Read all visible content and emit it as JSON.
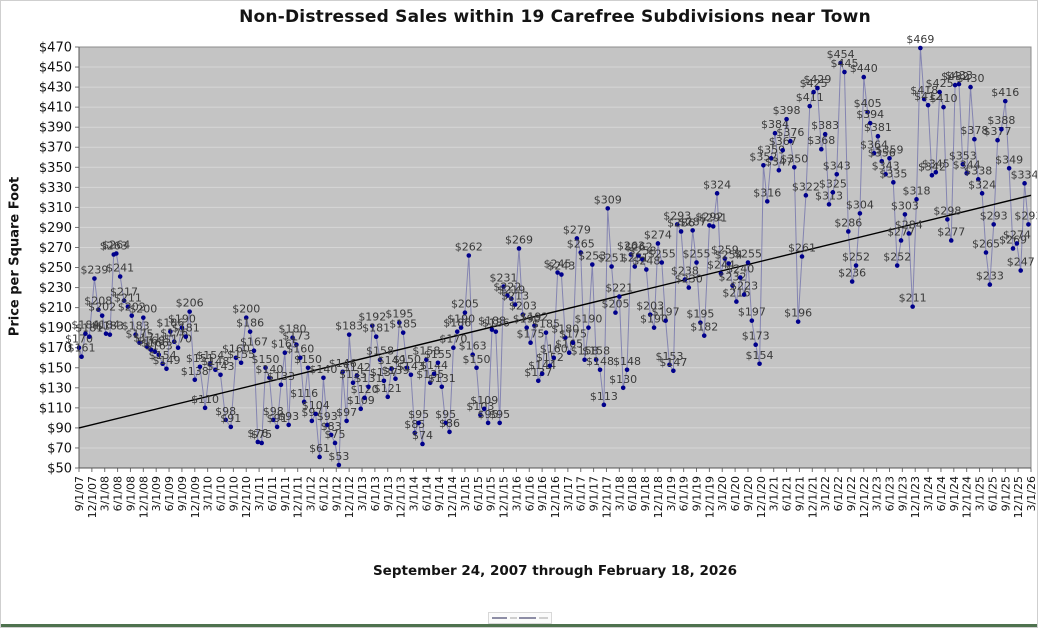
{
  "window": {
    "frame_border_color": "#cfcfcf",
    "bottom_bar_color": "#4e724e"
  },
  "chart_data": {
    "type": "scatter",
    "title": "Non-Distressed Sales within 19 Carefree Subdivisions near Town",
    "xlabel": "September 24, 2007 through February 18, 2026",
    "ylabel": "Price per Square Foot",
    "ylim": [
      50,
      470
    ],
    "ytick_step": 20,
    "grid": "horizontal",
    "legend_position": "bottom-miniature",
    "plot_bg": "#c4c4c4",
    "gridline_color": "#d6d6d6",
    "plot_border_color": "#8c8c8c",
    "axis_color": "#555555",
    "tick_color": "#707070",
    "point_color": "#00008b",
    "line_color": "rgba(90,90,165,0.6)",
    "label_color": "#3a3a3a",
    "trend_color": "#000000",
    "trendline": {
      "start_value": 90,
      "end_value": 322
    },
    "y_tick_labels": [
      "$470",
      "$450",
      "$430",
      "$410",
      "$390",
      "$370",
      "$350",
      "$330",
      "$310",
      "$290",
      "$270",
      "$250",
      "$230",
      "$210",
      "$190",
      "$170",
      "$150",
      "$130",
      "$110",
      "$90",
      "$70",
      "$50"
    ],
    "x_tick_labels": [
      "9/1/07",
      "12/1/07",
      "3/1/08",
      "6/1/08",
      "9/1/08",
      "12/1/08",
      "3/1/09",
      "6/1/09",
      "9/1/09",
      "12/1/09",
      "3/1/10",
      "6/1/10",
      "9/1/10",
      "12/1/10",
      "3/1/11",
      "6/1/11",
      "9/1/11",
      "12/1/11",
      "3/1/12",
      "6/1/12",
      "9/1/12",
      "12/1/12",
      "3/1/13",
      "6/1/13",
      "9/1/13",
      "12/1/13",
      "3/1/14",
      "6/1/14",
      "9/1/14",
      "12/1/14",
      "3/1/15",
      "6/1/15",
      "9/1/15",
      "12/1/15",
      "3/1/16",
      "6/1/16",
      "9/1/16",
      "12/1/16",
      "3/1/17",
      "6/1/17",
      "9/1/17",
      "12/1/17",
      "3/1/18",
      "6/1/18",
      "9/1/18",
      "12/1/18",
      "3/1/19",
      "6/1/19",
      "9/1/19",
      "12/1/19",
      "3/1/20",
      "6/1/20",
      "9/1/20",
      "12/1/20",
      "3/1/21",
      "6/1/21",
      "9/1/21",
      "12/1/21",
      "3/1/22",
      "6/1/22",
      "9/1/22",
      "12/1/22",
      "3/1/23",
      "6/1/23",
      "9/1/23",
      "12/1/23",
      "3/1/24",
      "6/1/24",
      "9/1/24",
      "12/1/24",
      "3/1/25",
      "6/1/25",
      "9/1/25",
      "12/1/25",
      "3/1/26"
    ],
    "points": [
      [
        0.0,
        170
      ],
      [
        0.2,
        161
      ],
      [
        0.5,
        184
      ],
      [
        0.8,
        181
      ],
      [
        1.2,
        239
      ],
      [
        1.5,
        208
      ],
      [
        1.8,
        202
      ],
      [
        2.1,
        184
      ],
      [
        2.4,
        183
      ],
      [
        2.7,
        263
      ],
      [
        2.9,
        264
      ],
      [
        3.2,
        241
      ],
      [
        3.5,
        217
      ],
      [
        3.8,
        211
      ],
      [
        4.1,
        202
      ],
      [
        4.4,
        183
      ],
      [
        4.7,
        175
      ],
      [
        5.0,
        200
      ],
      [
        5.3,
        171
      ],
      [
        5.6,
        168
      ],
      [
        5.9,
        166
      ],
      [
        6.2,
        163
      ],
      [
        6.5,
        154
      ],
      [
        6.8,
        149
      ],
      [
        7.1,
        186
      ],
      [
        7.4,
        176
      ],
      [
        7.7,
        170
      ],
      [
        8.0,
        190
      ],
      [
        8.3,
        181
      ],
      [
        8.6,
        206
      ],
      [
        9.0,
        138
      ],
      [
        9.4,
        151
      ],
      [
        9.8,
        110
      ],
      [
        10.2,
        154
      ],
      [
        10.6,
        148
      ],
      [
        11.0,
        143
      ],
      [
        11.4,
        98
      ],
      [
        11.8,
        91
      ],
      [
        12.2,
        160
      ],
      [
        12.6,
        155
      ],
      [
        13.0,
        200
      ],
      [
        13.3,
        186
      ],
      [
        13.6,
        167
      ],
      [
        13.9,
        76
      ],
      [
        14.2,
        75
      ],
      [
        14.5,
        150
      ],
      [
        14.8,
        140
      ],
      [
        15.1,
        98
      ],
      [
        15.4,
        91
      ],
      [
        15.7,
        133
      ],
      [
        16.0,
        165
      ],
      [
        16.3,
        93
      ],
      [
        16.6,
        180
      ],
      [
        16.9,
        173
      ],
      [
        17.2,
        160
      ],
      [
        17.5,
        116
      ],
      [
        17.8,
        150
      ],
      [
        18.1,
        97
      ],
      [
        18.4,
        104
      ],
      [
        18.7,
        61
      ],
      [
        19.0,
        140
      ],
      [
        19.3,
        93
      ],
      [
        19.6,
        83
      ],
      [
        19.9,
        75
      ],
      [
        20.2,
        53
      ],
      [
        20.5,
        146
      ],
      [
        20.8,
        97
      ],
      [
        21.0,
        183
      ],
      [
        21.3,
        135
      ],
      [
        21.6,
        142
      ],
      [
        21.9,
        109
      ],
      [
        22.2,
        120
      ],
      [
        22.5,
        131
      ],
      [
        22.8,
        192
      ],
      [
        23.1,
        181
      ],
      [
        23.4,
        158
      ],
      [
        23.7,
        137
      ],
      [
        24.0,
        121
      ],
      [
        24.3,
        149
      ],
      [
        24.6,
        139
      ],
      [
        24.9,
        195
      ],
      [
        25.2,
        185
      ],
      [
        25.5,
        150
      ],
      [
        25.8,
        143
      ],
      [
        26.1,
        85
      ],
      [
        26.4,
        95
      ],
      [
        26.7,
        74
      ],
      [
        27.0,
        158
      ],
      [
        27.3,
        135
      ],
      [
        27.6,
        144
      ],
      [
        27.9,
        155
      ],
      [
        28.2,
        131
      ],
      [
        28.5,
        95
      ],
      [
        28.8,
        86
      ],
      [
        29.1,
        170
      ],
      [
        29.4,
        186
      ],
      [
        29.7,
        190
      ],
      [
        30.0,
        205
      ],
      [
        30.3,
        262
      ],
      [
        30.6,
        163
      ],
      [
        30.9,
        150
      ],
      [
        31.2,
        103
      ],
      [
        31.5,
        109
      ],
      [
        31.8,
        95
      ],
      [
        32.1,
        188
      ],
      [
        32.4,
        186
      ],
      [
        32.7,
        95
      ],
      [
        33.0,
        231
      ],
      [
        33.3,
        222
      ],
      [
        33.6,
        219
      ],
      [
        33.9,
        213
      ],
      [
        34.2,
        269
      ],
      [
        34.5,
        203
      ],
      [
        34.8,
        190
      ],
      [
        35.1,
        175
      ],
      [
        35.4,
        192
      ],
      [
        35.7,
        137
      ],
      [
        36.0,
        144
      ],
      [
        36.3,
        185
      ],
      [
        36.6,
        152
      ],
      [
        36.9,
        160
      ],
      [
        37.2,
        245
      ],
      [
        37.5,
        243
      ],
      [
        37.8,
        180
      ],
      [
        38.1,
        165
      ],
      [
        38.4,
        175
      ],
      [
        38.7,
        279
      ],
      [
        39.0,
        265
      ],
      [
        39.3,
        158
      ],
      [
        39.6,
        190
      ],
      [
        39.9,
        253
      ],
      [
        40.2,
        158
      ],
      [
        40.5,
        148
      ],
      [
        40.8,
        113
      ],
      [
        41.1,
        309
      ],
      [
        41.4,
        251
      ],
      [
        41.7,
        205
      ],
      [
        42.0,
        221
      ],
      [
        42.3,
        130
      ],
      [
        42.6,
        148
      ],
      [
        42.9,
        263
      ],
      [
        43.2,
        251
      ],
      [
        43.5,
        262
      ],
      [
        43.8,
        258
      ],
      [
        44.1,
        248
      ],
      [
        44.4,
        203
      ],
      [
        44.7,
        190
      ],
      [
        45.0,
        274
      ],
      [
        45.3,
        255
      ],
      [
        45.6,
        197
      ],
      [
        45.9,
        153
      ],
      [
        46.2,
        147
      ],
      [
        46.5,
        293
      ],
      [
        46.8,
        286
      ],
      [
        47.1,
        238
      ],
      [
        47.4,
        230
      ],
      [
        47.7,
        287
      ],
      [
        48.0,
        255
      ],
      [
        48.3,
        195
      ],
      [
        48.6,
        182
      ],
      [
        49.0,
        292
      ],
      [
        49.3,
        291
      ],
      [
        49.6,
        324
      ],
      [
        49.9,
        244
      ],
      [
        50.2,
        259
      ],
      [
        50.5,
        254
      ],
      [
        50.8,
        232
      ],
      [
        51.1,
        216
      ],
      [
        51.4,
        240
      ],
      [
        51.7,
        223
      ],
      [
        52.0,
        255
      ],
      [
        52.3,
        197
      ],
      [
        52.6,
        173
      ],
      [
        52.9,
        154
      ],
      [
        53.2,
        352
      ],
      [
        53.5,
        316
      ],
      [
        53.8,
        359
      ],
      [
        54.1,
        384
      ],
      [
        54.4,
        347
      ],
      [
        54.7,
        367
      ],
      [
        55.0,
        398
      ],
      [
        55.3,
        376
      ],
      [
        55.6,
        350
      ],
      [
        55.9,
        196
      ],
      [
        56.2,
        261
      ],
      [
        56.5,
        322
      ],
      [
        56.8,
        411
      ],
      [
        57.1,
        425
      ],
      [
        57.4,
        429
      ],
      [
        57.7,
        368
      ],
      [
        58.0,
        383
      ],
      [
        58.3,
        313
      ],
      [
        58.6,
        325
      ],
      [
        58.9,
        343
      ],
      [
        59.2,
        454
      ],
      [
        59.5,
        445
      ],
      [
        59.8,
        286
      ],
      [
        60.1,
        236
      ],
      [
        60.4,
        252
      ],
      [
        60.7,
        304
      ],
      [
        61.0,
        440
      ],
      [
        61.3,
        405
      ],
      [
        61.5,
        394
      ],
      [
        61.8,
        364
      ],
      [
        62.1,
        381
      ],
      [
        62.4,
        356
      ],
      [
        62.7,
        343
      ],
      [
        63.0,
        359
      ],
      [
        63.3,
        335
      ],
      [
        63.6,
        252
      ],
      [
        63.9,
        277
      ],
      [
        64.2,
        303
      ],
      [
        64.5,
        284
      ],
      [
        64.8,
        211
      ],
      [
        65.1,
        318
      ],
      [
        65.4,
        469
      ],
      [
        65.7,
        418
      ],
      [
        66.0,
        412
      ],
      [
        66.3,
        342
      ],
      [
        66.6,
        345
      ],
      [
        66.9,
        425
      ],
      [
        67.2,
        410
      ],
      [
        67.5,
        298
      ],
      [
        67.8,
        277
      ],
      [
        68.1,
        432
      ],
      [
        68.4,
        433
      ],
      [
        68.7,
        353
      ],
      [
        69.0,
        344
      ],
      [
        69.3,
        430
      ],
      [
        69.6,
        378
      ],
      [
        69.9,
        338
      ],
      [
        70.2,
        324
      ],
      [
        70.5,
        265
      ],
      [
        70.8,
        233
      ],
      [
        71.1,
        293
      ],
      [
        71.4,
        377
      ],
      [
        71.7,
        388
      ],
      [
        72.0,
        416
      ],
      [
        72.3,
        349
      ],
      [
        72.6,
        269
      ],
      [
        72.9,
        274
      ],
      [
        73.2,
        247
      ],
      [
        73.5,
        334
      ],
      [
        73.8,
        293
      ]
    ]
  }
}
